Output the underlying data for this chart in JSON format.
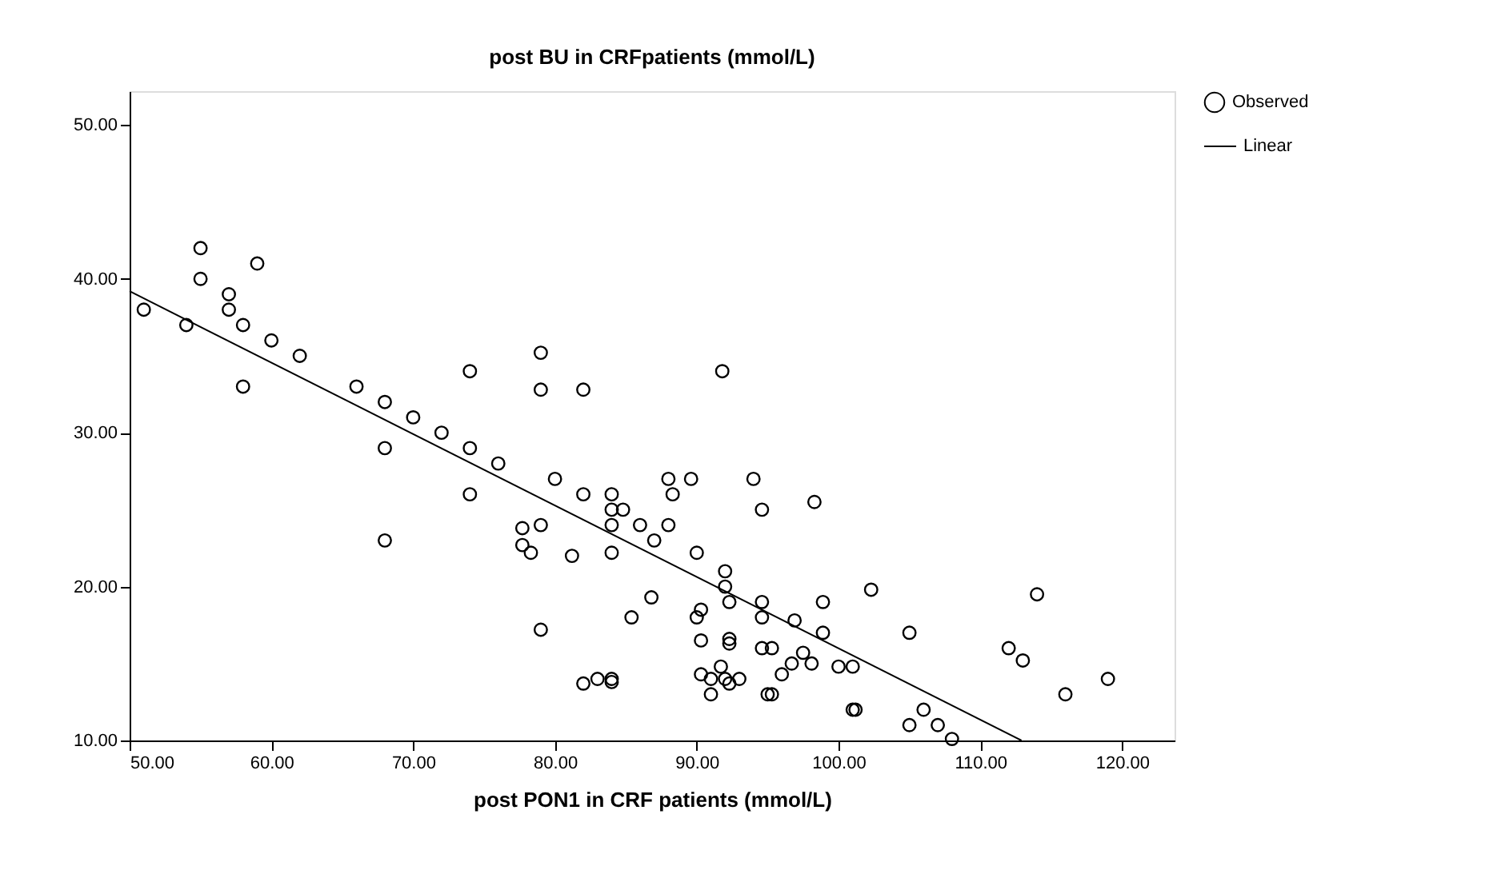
{
  "chart_data": {
    "type": "scatter",
    "title": "post BU in CRFpatients (mmol/L)",
    "xlabel": "post PON1 in CRF patients (mmol/L)",
    "xlim": [
      50,
      123.7
    ],
    "ylim": [
      10,
      52.2
    ],
    "xticks": [
      {
        "value": 50,
        "label": "50.00"
      },
      {
        "value": 60,
        "label": "60.00"
      },
      {
        "value": 70,
        "label": "70.00"
      },
      {
        "value": 80,
        "label": "80.00"
      },
      {
        "value": 90,
        "label": "90.00"
      },
      {
        "value": 100,
        "label": "100.00"
      },
      {
        "value": 110,
        "label": "110.00"
      },
      {
        "value": 120,
        "label": "120.00"
      }
    ],
    "yticks": [
      {
        "value": 10,
        "label": "10.00"
      },
      {
        "value": 20,
        "label": "20.00"
      },
      {
        "value": 30,
        "label": "30.00"
      },
      {
        "value": 40,
        "label": "40.00"
      },
      {
        "value": 50,
        "label": "50.00"
      }
    ],
    "grid": false,
    "legend": "top right",
    "series": [
      {
        "name": "Observed",
        "marker": "circle",
        "color": "#000000",
        "x": [
          51,
          54,
          55,
          55,
          57,
          57,
          58,
          58,
          59,
          60,
          62,
          66,
          68,
          68,
          68,
          70,
          72,
          74,
          74,
          74,
          76,
          79,
          79,
          79,
          77.7,
          77.7,
          78.3,
          79,
          82,
          80,
          81.2,
          82,
          82,
          83,
          84,
          84,
          84,
          84,
          84.8,
          84,
          84,
          86,
          85.4,
          87,
          88,
          88.3,
          88,
          86.8,
          89.6,
          90,
          90,
          90.3,
          90.3,
          90.3,
          91,
          91,
          91.7,
          92,
          92,
          92,
          92.3,
          92.3,
          92.3,
          92.3,
          93,
          91.8,
          94,
          94.6,
          94.6,
          94.6,
          94.6,
          95.3,
          95,
          95.3,
          96,
          96.7,
          96.9,
          97.5,
          98.1,
          98.3,
          98.9,
          98.9,
          100,
          101,
          101,
          101.2,
          102.3,
          105,
          105,
          106,
          107,
          108,
          112,
          113,
          114,
          116,
          119
        ],
        "values": [
          38,
          37,
          42,
          40,
          39,
          38,
          37,
          33,
          41,
          36,
          35,
          33,
          32,
          29,
          23,
          31,
          30,
          34,
          29,
          26,
          28,
          35.2,
          32.8,
          24,
          23.8,
          22.7,
          22.2,
          17.2,
          32.8,
          27,
          22,
          26,
          13.7,
          14,
          14,
          13.8,
          26,
          25,
          25,
          24,
          22.2,
          24,
          18,
          23,
          27,
          26,
          24,
          19.3,
          27,
          22.2,
          18,
          18.5,
          16.5,
          14.3,
          14,
          13,
          14.8,
          14,
          21,
          20,
          19,
          16.6,
          16.3,
          13.7,
          14,
          34,
          27,
          25,
          19,
          18,
          16,
          16,
          13,
          13,
          14.3,
          15,
          17.8,
          15.7,
          15,
          25.5,
          19,
          17,
          14.8,
          14.8,
          12,
          12,
          19.8,
          17,
          11,
          12,
          11,
          10.1,
          16,
          15.2,
          19.5,
          13,
          14
        ]
      },
      {
        "name": "Linear",
        "type": "line",
        "line_style": "solid",
        "color": "#000000",
        "x": [
          50,
          112.9
        ],
        "values": [
          39.2,
          10
        ]
      }
    ]
  }
}
